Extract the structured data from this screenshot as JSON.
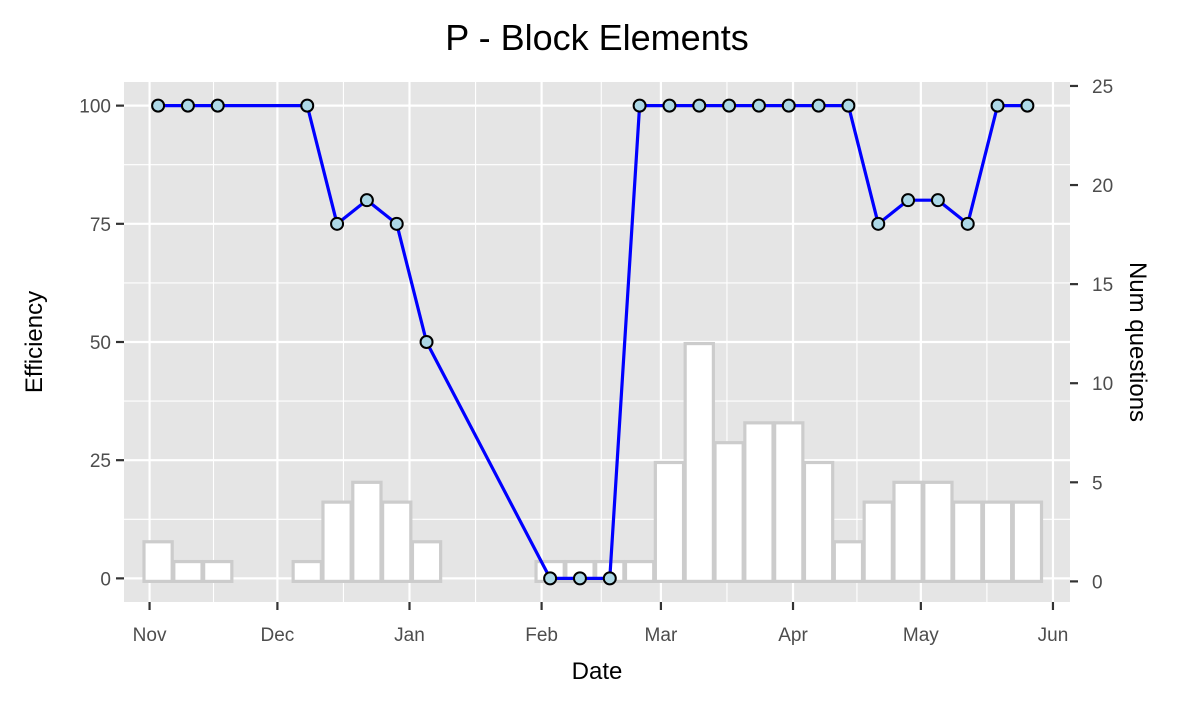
{
  "chart_data": {
    "type": "line",
    "title": "P - Block Elements",
    "xlabel": "Date",
    "ylabel": "Efficiency",
    "ylabel_right": "Num questions",
    "ylim": [
      -5,
      105
    ],
    "ylim_right": [
      -1.04,
      25.2
    ],
    "xlim": [
      "2016-10-26",
      "2017-06-05"
    ],
    "x_ticks": [
      {
        "date": "2016-11-01",
        "label": "Nov"
      },
      {
        "date": "2016-12-01",
        "label": "Dec"
      },
      {
        "date": "2017-01-01",
        "label": "Jan"
      },
      {
        "date": "2017-02-01",
        "label": "Feb"
      },
      {
        "date": "2017-03-01",
        "label": "Mar"
      },
      {
        "date": "2017-04-01",
        "label": "Apr"
      },
      {
        "date": "2017-05-01",
        "label": "May"
      },
      {
        "date": "2017-06-01",
        "label": "Jun"
      }
    ],
    "y_ticks": [
      0,
      25,
      50,
      75,
      100
    ],
    "y_ticks_right": [
      0,
      5,
      10,
      15,
      20,
      25
    ],
    "grid": true,
    "series": [
      {
        "role": "efficiency",
        "color": "#0000ff",
        "marker_fill": "#add8e6",
        "points": [
          {
            "x": "2016-11-03",
            "y": 100
          },
          {
            "x": "2016-11-10",
            "y": 100
          },
          {
            "x": "2016-11-17",
            "y": 100
          },
          {
            "x": "2016-12-08",
            "y": 100
          },
          {
            "x": "2016-12-15",
            "y": 75
          },
          {
            "x": "2016-12-22",
            "y": 80
          },
          {
            "x": "2016-12-29",
            "y": 75
          },
          {
            "x": "2017-01-05",
            "y": 50
          },
          {
            "x": "2017-02-03",
            "y": 0
          },
          {
            "x": "2017-02-10",
            "y": 0
          },
          {
            "x": "2017-02-17",
            "y": 0
          },
          {
            "x": "2017-02-24",
            "y": 100
          },
          {
            "x": "2017-03-03",
            "y": 100
          },
          {
            "x": "2017-03-10",
            "y": 100
          },
          {
            "x": "2017-03-17",
            "y": 100
          },
          {
            "x": "2017-03-24",
            "y": 100
          },
          {
            "x": "2017-03-31",
            "y": 100
          },
          {
            "x": "2017-04-07",
            "y": 100
          },
          {
            "x": "2017-04-14",
            "y": 100
          },
          {
            "x": "2017-04-21",
            "y": 75
          },
          {
            "x": "2017-04-28",
            "y": 80
          },
          {
            "x": "2017-05-05",
            "y": 80
          },
          {
            "x": "2017-05-12",
            "y": 75
          },
          {
            "x": "2017-05-19",
            "y": 100
          },
          {
            "x": "2017-05-26",
            "y": 100
          }
        ]
      },
      {
        "role": "num_questions",
        "type": "bar",
        "fill": "#ffffff",
        "outline": "#cccccc",
        "bars": [
          {
            "x": "2016-11-03",
            "y": 2
          },
          {
            "x": "2016-11-10",
            "y": 1
          },
          {
            "x": "2016-11-17",
            "y": 1
          },
          {
            "x": "2016-12-08",
            "y": 1
          },
          {
            "x": "2016-12-15",
            "y": 4
          },
          {
            "x": "2016-12-22",
            "y": 5
          },
          {
            "x": "2016-12-29",
            "y": 4
          },
          {
            "x": "2017-01-05",
            "y": 2
          },
          {
            "x": "2017-02-03",
            "y": 1
          },
          {
            "x": "2017-02-10",
            "y": 1
          },
          {
            "x": "2017-02-17",
            "y": 1
          },
          {
            "x": "2017-02-24",
            "y": 1
          },
          {
            "x": "2017-03-03",
            "y": 6
          },
          {
            "x": "2017-03-10",
            "y": 12
          },
          {
            "x": "2017-03-17",
            "y": 7
          },
          {
            "x": "2017-03-24",
            "y": 8
          },
          {
            "x": "2017-03-31",
            "y": 8
          },
          {
            "x": "2017-04-07",
            "y": 6
          },
          {
            "x": "2017-04-14",
            "y": 2
          },
          {
            "x": "2017-04-21",
            "y": 4
          },
          {
            "x": "2017-04-28",
            "y": 5
          },
          {
            "x": "2017-05-05",
            "y": 5
          },
          {
            "x": "2017-05-12",
            "y": 4
          },
          {
            "x": "2017-05-19",
            "y": 4
          },
          {
            "x": "2017-05-26",
            "y": 4
          }
        ]
      }
    ]
  }
}
